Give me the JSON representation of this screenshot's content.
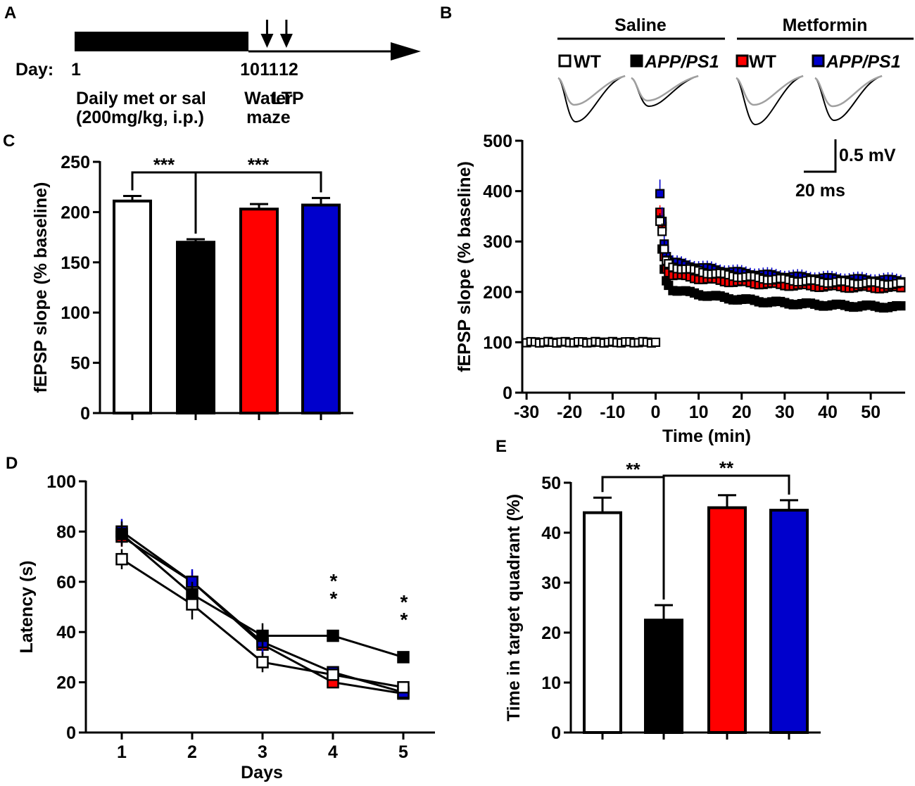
{
  "panel_letters": {
    "a": "A",
    "b": "B",
    "c": "C",
    "d": "D",
    "e": "E"
  },
  "colors": {
    "wt_saline": "#ffffff",
    "app_saline": "#000000",
    "wt_met": "#ff0000",
    "app_met": "#0000cc",
    "trace_test": "#000000",
    "trace_base": "#a0a0a0"
  },
  "timeline": {
    "day_label": "Day:",
    "days": [
      {
        "day": 1,
        "label": "1"
      },
      {
        "day": 10,
        "label": "10"
      },
      {
        "day": 11,
        "label": "11"
      },
      {
        "day": 12,
        "label": "12"
      }
    ],
    "treatment": [
      "Daily met or sal",
      "(200mg/kg, i.p.)"
    ],
    "events": [
      {
        "day": 11,
        "lines": [
          "Water",
          "maze"
        ]
      },
      {
        "day": 12,
        "lines": [
          "LTP"
        ]
      }
    ]
  },
  "panel_b": {
    "groups": [
      "Saline",
      "Metformin"
    ],
    "legend": [
      "WT",
      "APP/PS1",
      "WT",
      "APP/PS1"
    ],
    "scale_bar": {
      "voltage": "0.5 mV",
      "time": "20 ms"
    }
  },
  "chart_data": [
    {
      "id": "C",
      "type": "bar",
      "ylabel": "fEPSP slope (% baseline)",
      "ylim": [
        0,
        250
      ],
      "yticks": [
        0,
        50,
        100,
        150,
        200,
        250
      ],
      "categories": [
        "WT saline",
        "APP/PS1 saline",
        "WT metformin",
        "APP/PS1 metformin"
      ],
      "values": [
        211,
        170,
        203,
        207
      ],
      "errors": [
        5,
        3,
        5,
        7
      ],
      "significance": [
        {
          "from": 0,
          "to": 1,
          "label": "***"
        },
        {
          "from": 1,
          "to": 3,
          "label": "***"
        }
      ]
    },
    {
      "id": "B",
      "type": "scatter",
      "xlabel": "Time (min)",
      "ylabel": "fEPSP slope (% baseline)",
      "xlim": [
        -31,
        58
      ],
      "ylim": [
        0,
        500
      ],
      "xticks": [
        -30,
        -20,
        -10,
        0,
        10,
        20,
        30,
        40,
        50
      ],
      "yticks": [
        0,
        100,
        200,
        300,
        400,
        500
      ],
      "baseline": {
        "start": -30,
        "end": 0,
        "step": 1,
        "value": 100
      },
      "series": [
        {
          "name": "WT saline",
          "color": "#ffffff",
          "peak": [
            340,
            320,
            285,
            262,
            256
          ],
          "plateau_start": 250,
          "plateau_end": 216,
          "error": 8
        },
        {
          "name": "APP/PS1 saline",
          "color": "#000000",
          "peak": [
            345,
            285,
            245,
            222,
            213
          ],
          "plateau_start": 205,
          "plateau_end": 170,
          "error": 5
        },
        {
          "name": "WT metformin",
          "color": "#ff0000",
          "peak": [
            358,
            330,
            270,
            245,
            238
          ],
          "plateau_start": 234,
          "plateau_end": 208,
          "error": 7
        },
        {
          "name": "APP/PS1 metformin",
          "color": "#0000cc",
          "peak": [
            395,
            340,
            295,
            270,
            263
          ],
          "plateau_start": 258,
          "plateau_end": 222,
          "error": 14
        }
      ]
    },
    {
      "id": "D",
      "type": "line",
      "xlabel": "Days",
      "ylabel": "Latency (s)",
      "ylim": [
        0,
        100
      ],
      "yticks": [
        0,
        20,
        40,
        60,
        80,
        100
      ],
      "x": [
        1,
        2,
        3,
        4,
        5
      ],
      "series": [
        {
          "name": "WT metformin",
          "color": "#ff0000",
          "values": [
            78,
            60,
            35,
            20,
            15.5
          ],
          "errors": [
            4,
            4,
            4,
            1,
            1
          ]
        },
        {
          "name": "APP/PS1 metformin",
          "color": "#0000cc",
          "values": [
            80,
            60,
            36,
            24,
            16
          ],
          "errors": [
            5,
            5,
            5,
            2,
            1
          ]
        },
        {
          "name": "APP/PS1 saline",
          "color": "#000000",
          "values": [
            79,
            55,
            38.5,
            38.5,
            30
          ],
          "errors": [
            5,
            5,
            5,
            2,
            2
          ]
        },
        {
          "name": "WT saline",
          "color": "#ffffff",
          "values": [
            69,
            51,
            28,
            23,
            18
          ],
          "errors": [
            4,
            6,
            4,
            2,
            2
          ]
        }
      ],
      "significance": [
        {
          "x": 4,
          "label": "**"
        },
        {
          "x": 5,
          "label": "**"
        }
      ]
    },
    {
      "id": "E",
      "type": "bar",
      "ylabel": "Time in target quadrant (%)",
      "ylim": [
        0,
        50
      ],
      "yticks": [
        0,
        10,
        20,
        30,
        40,
        50
      ],
      "categories": [
        "WT saline",
        "APP/PS1 saline",
        "WT metformin",
        "APP/PS1 metformin"
      ],
      "values": [
        44,
        22.5,
        45,
        44.5
      ],
      "errors": [
        3,
        3,
        2.5,
        2
      ],
      "significance": [
        {
          "from": 0,
          "to": 1,
          "label": "**"
        },
        {
          "from": 1,
          "to": 3,
          "label": "**"
        }
      ]
    }
  ]
}
